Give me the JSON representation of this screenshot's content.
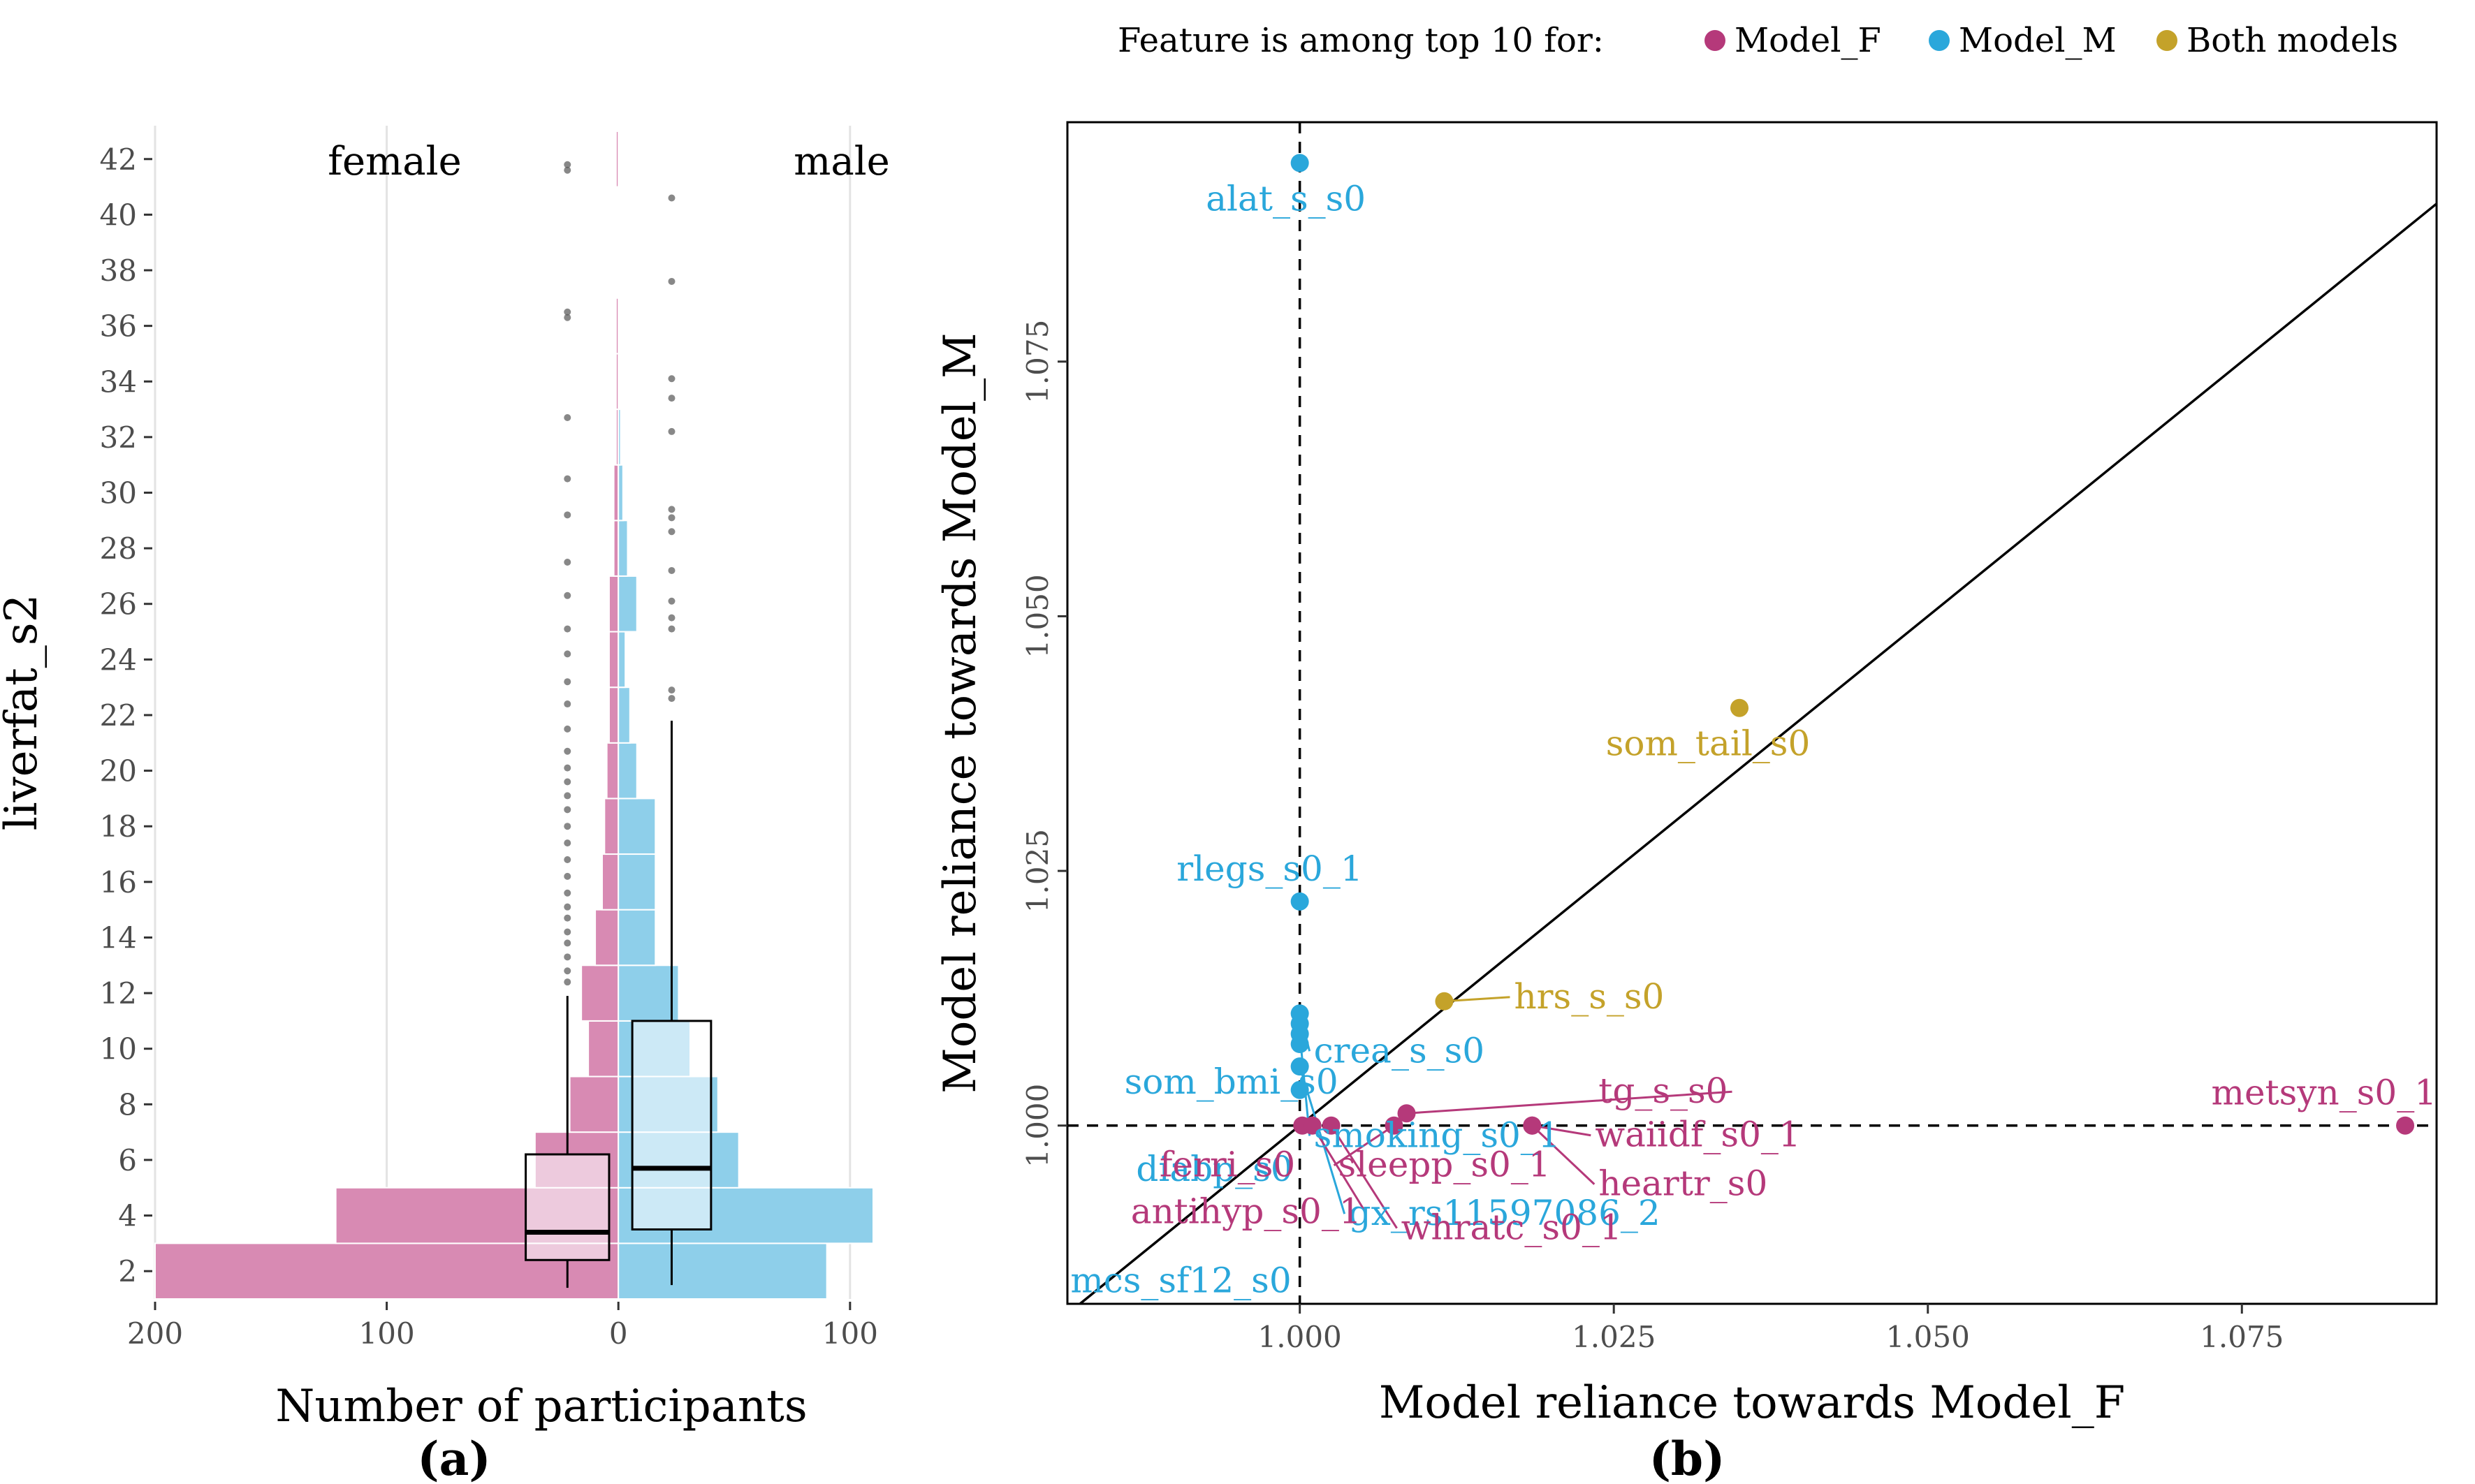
{
  "legend": {
    "title": "Feature is among top 10 for:",
    "items": [
      {
        "label": "Model_F",
        "color": "#B5397A"
      },
      {
        "label": "Model_M",
        "color": "#2AA7DB"
      },
      {
        "label": "Both models",
        "color": "#C4A22A"
      }
    ]
  },
  "chart_data": [
    {
      "type": "bar",
      "panel": "(a)",
      "orientation": "horizontal-pyramid",
      "xlabel": "Number of participants",
      "ylabel": "liverfat_s2",
      "left_group": "female",
      "right_group": "male",
      "xlim": [
        -200,
        110
      ],
      "ylim": [
        1,
        43.2
      ],
      "x_ticks": [
        {
          "value": -200,
          "label": "200"
        },
        {
          "value": -100,
          "label": "100"
        },
        {
          "value": 0,
          "label": "0"
        },
        {
          "value": 100,
          "label": "100"
        }
      ],
      "y_ticks": [
        2,
        4,
        6,
        8,
        10,
        12,
        14,
        16,
        18,
        20,
        22,
        24,
        26,
        28,
        30,
        32,
        34,
        36,
        38,
        40,
        42
      ],
      "bin_width": 2,
      "female_color": "#D88AB3",
      "male_color": "#8ECFEA",
      "series": [
        {
          "name": "female",
          "bins": [
            {
              "center": 2,
              "value": 200
            },
            {
              "center": 4,
              "value": 122
            },
            {
              "center": 6,
              "value": 36
            },
            {
              "center": 8,
              "value": 21
            },
            {
              "center": 10,
              "value": 13
            },
            {
              "center": 12,
              "value": 16
            },
            {
              "center": 14,
              "value": 10
            },
            {
              "center": 16,
              "value": 7
            },
            {
              "center": 18,
              "value": 6
            },
            {
              "center": 20,
              "value": 5
            },
            {
              "center": 22,
              "value": 4
            },
            {
              "center": 24,
              "value": 4
            },
            {
              "center": 26,
              "value": 4
            },
            {
              "center": 28,
              "value": 2
            },
            {
              "center": 30,
              "value": 2
            },
            {
              "center": 32,
              "value": 1
            },
            {
              "center": 34,
              "value": 1
            },
            {
              "center": 36,
              "value": 1
            },
            {
              "center": 38,
              "value": 0
            },
            {
              "center": 40,
              "value": 0
            },
            {
              "center": 42,
              "value": 1
            }
          ]
        },
        {
          "name": "male",
          "bins": [
            {
              "center": 2,
              "value": 90
            },
            {
              "center": 4,
              "value": 110
            },
            {
              "center": 6,
              "value": 52
            },
            {
              "center": 8,
              "value": 43
            },
            {
              "center": 10,
              "value": 31
            },
            {
              "center": 12,
              "value": 26
            },
            {
              "center": 14,
              "value": 16
            },
            {
              "center": 16,
              "value": 16
            },
            {
              "center": 18,
              "value": 16
            },
            {
              "center": 20,
              "value": 8
            },
            {
              "center": 22,
              "value": 5
            },
            {
              "center": 24,
              "value": 3
            },
            {
              "center": 26,
              "value": 8
            },
            {
              "center": 28,
              "value": 4
            },
            {
              "center": 30,
              "value": 2
            },
            {
              "center": 32,
              "value": 1
            },
            {
              "center": 34,
              "value": 0
            },
            {
              "center": 36,
              "value": 0
            },
            {
              "center": 38,
              "value": 0
            },
            {
              "center": 40,
              "value": 0
            },
            {
              "center": 42,
              "value": 0
            }
          ]
        }
      ],
      "boxplots": [
        {
          "group": "female",
          "x_center": -22,
          "x_half_width": 18,
          "q1": 2.4,
          "median": 3.4,
          "q3": 6.2,
          "whisker_low": 1.4,
          "whisker_high": 11.9,
          "outliers": [
            12.4,
            12.8,
            13.3,
            13.8,
            14.2,
            14.7,
            15.1,
            15.6,
            16.2,
            16.8,
            17.4,
            18.0,
            18.6,
            19.1,
            19.6,
            20.1,
            20.7,
            21.5,
            22.4,
            23.2,
            24.2,
            25.1,
            26.3,
            27.5,
            29.2,
            30.5,
            32.7,
            36.3,
            36.5,
            41.6,
            41.8
          ]
        },
        {
          "group": "male",
          "x_center": 23,
          "x_half_width": 17,
          "q1": 3.5,
          "median": 5.7,
          "q3": 11.0,
          "whisker_low": 1.5,
          "whisker_high": 21.8,
          "outliers": [
            22.6,
            22.9,
            25.1,
            25.5,
            26.1,
            27.2,
            28.6,
            29.1,
            29.4,
            32.2,
            33.4,
            34.1,
            37.6,
            40.6
          ]
        }
      ]
    },
    {
      "type": "scatter",
      "panel": "(b)",
      "xlabel": "Model reliance towards Model_F",
      "ylabel": "Model reliance towards Model_M",
      "xlim": [
        0.9815,
        1.0905
      ],
      "ylim": [
        0.9825,
        1.0985
      ],
      "x_ticks": [
        "1.000",
        "1.025",
        "1.050",
        "1.075"
      ],
      "y_ticks": [
        "1.000",
        "1.025",
        "1.050",
        "1.075"
      ],
      "reference_lines": [
        {
          "type": "vertical",
          "x": 1.0,
          "style": "dashed"
        },
        {
          "type": "horizontal",
          "y": 1.0,
          "style": "dashed"
        },
        {
          "type": "diagonal",
          "slope": 1,
          "intercept": 0,
          "style": "solid"
        }
      ],
      "points": [
        {
          "label": "alat_s_s0",
          "x": 1.0,
          "y": 1.0945,
          "group": "Model_M"
        },
        {
          "label": "rlegs_s0_1",
          "x": 1.0,
          "y": 1.022,
          "group": "Model_M"
        },
        {
          "label": "crea_s_s0",
          "x": 1.0,
          "y": 1.011,
          "group": "Model_M"
        },
        {
          "label": "som_bmi_s0",
          "x": 1.0,
          "y": 1.01,
          "group": "Model_M"
        },
        {
          "label": "smoking_s0_1",
          "x": 1.0,
          "y": 1.009,
          "group": "Model_M"
        },
        {
          "label": "diabp_s0",
          "x": 1.0,
          "y": 1.008,
          "group": "Model_M"
        },
        {
          "label": "gx_rs11597086_2",
          "x": 1.0,
          "y": 1.0058,
          "group": "Model_M"
        },
        {
          "label": "mcs_sf12_s0",
          "x": 1.0,
          "y": 1.0035,
          "group": "Model_M"
        },
        {
          "label": "som_tail_s0",
          "x": 1.035,
          "y": 1.041,
          "group": "Both models"
        },
        {
          "label": "hrs_s_s0",
          "x": 1.0115,
          "y": 1.0122,
          "group": "Both models"
        },
        {
          "label": "metsyn_s0_1",
          "x": 1.088,
          "y": 1.0,
          "group": "Model_F"
        },
        {
          "label": "tg_s_s0",
          "x": 1.0085,
          "y": 1.0012,
          "group": "Model_F"
        },
        {
          "label": "waiidf_s0_1",
          "x": 1.0185,
          "y": 1.0,
          "group": "Model_F"
        },
        {
          "label": "heartr_s0",
          "x": 1.0185,
          "y": 1.0,
          "group": "Model_F"
        },
        {
          "label": "sleepp_s0_1",
          "x": 1.0075,
          "y": 1.0,
          "group": "Model_F"
        },
        {
          "label": "whratc_s0_1",
          "x": 1.0025,
          "y": 1.0,
          "group": "Model_F"
        },
        {
          "label": "ferri_s0",
          "x": 1.0002,
          "y": 1.0,
          "group": "Model_F"
        },
        {
          "label": "antihyp_s0_1",
          "x": 1.001,
          "y": 1.0,
          "group": "Model_F"
        }
      ]
    }
  ]
}
